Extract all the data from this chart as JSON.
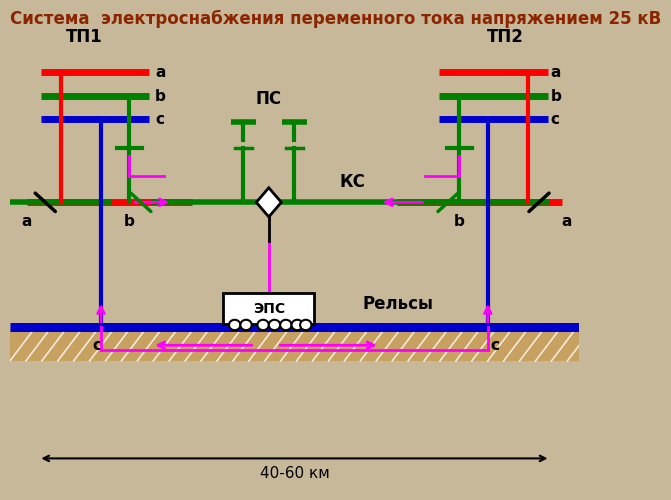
{
  "title": "Система  электроснабжения переменного тока напряжением 25 кВ",
  "title_fontsize": 12,
  "title_color": "#8B2500",
  "slide_bg": "#C8B89A",
  "colors": {
    "red": "#FF0000",
    "green": "#008000",
    "blue": "#0000CD",
    "black": "#000000",
    "magenta": "#FF00FF",
    "hatch_bg": "#C8A060",
    "white": "#FFFFFF"
  },
  "labels": {
    "TP1": "ТП1",
    "TP2": "ТП2",
    "PS": "ПС",
    "KS": "КС",
    "EPS": "ЭПС",
    "Rails": "Рельсы",
    "dist": "40-60 км"
  }
}
